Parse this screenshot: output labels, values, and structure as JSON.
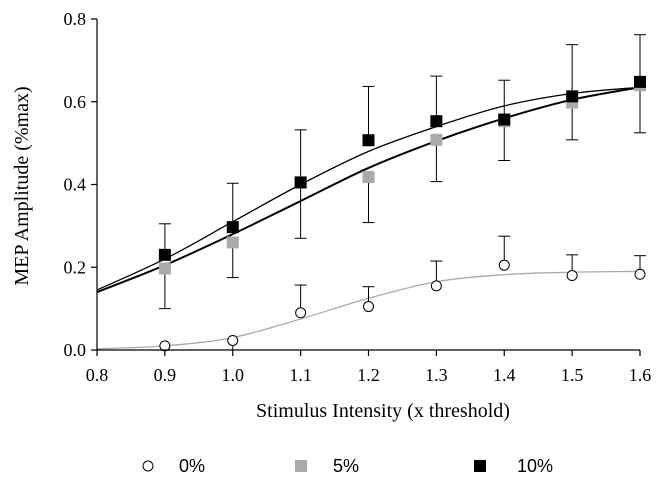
{
  "chart_data": {
    "type": "scatter",
    "title": "",
    "xlabel": "Stimulus Intensity (x threshold)",
    "ylabel": "MEP Amplitude (%max)",
    "xlim": [
      0.8,
      1.6
    ],
    "ylim": [
      0.0,
      0.8
    ],
    "x_ticks": [
      0.8,
      0.9,
      1.0,
      1.1,
      1.2,
      1.3,
      1.4,
      1.5,
      1.6
    ],
    "x_tick_labels": [
      "0.8",
      "0.9",
      "1.0",
      "1.1",
      "1.2",
      "1.3",
      "1.4",
      "1.5",
      "1.6"
    ],
    "y_ticks": [
      0.0,
      0.2,
      0.4,
      0.6,
      0.8
    ],
    "y_tick_labels": [
      "0.0",
      "0.2",
      "0.4",
      "0.6",
      "0.8"
    ],
    "grid": false,
    "legend_position": "bottom",
    "x": [
      0.9,
      1.0,
      1.1,
      1.2,
      1.3,
      1.4,
      1.5,
      1.6
    ],
    "series": [
      {
        "name": "0%",
        "marker": "open-circle",
        "color": "#000000",
        "fit_color": "#aaaaaa",
        "values": [
          0.01,
          0.023,
          0.09,
          0.105,
          0.155,
          0.205,
          0.18,
          0.183
        ],
        "error_upper": [
          0.0,
          0.0,
          0.157,
          0.153,
          0.215,
          0.275,
          0.23,
          0.228
        ],
        "error_lower": [
          null,
          null,
          null,
          null,
          null,
          null,
          null,
          null
        ],
        "fit": [
          0.003,
          0.01,
          0.03,
          0.075,
          0.125,
          0.165,
          0.182,
          0.188,
          0.19
        ]
      },
      {
        "name": "5%",
        "marker": "filled-square",
        "color": "#aaaaaa",
        "fit_color": "#000000",
        "values": [
          0.197,
          0.26,
          0.405,
          0.418,
          0.508,
          0.553,
          0.598,
          0.64
        ],
        "error_upper": [
          null,
          null,
          null,
          null,
          null,
          null,
          null,
          null
        ],
        "error_lower": [
          0.1,
          0.175,
          0.27,
          0.308,
          0.407,
          0.458,
          0.508,
          0.525
        ],
        "fit": [
          0.14,
          0.205,
          0.28,
          0.36,
          0.44,
          0.505,
          0.56,
          0.605,
          0.635
        ]
      },
      {
        "name": "10%",
        "marker": "filled-square",
        "color": "#000000",
        "fit_color": "#000000",
        "values": [
          0.23,
          0.297,
          0.405,
          0.507,
          0.553,
          0.557,
          0.613,
          0.648
        ],
        "error_upper": [
          0.305,
          0.403,
          0.532,
          0.637,
          0.662,
          0.652,
          0.738,
          0.762
        ],
        "error_lower": [
          null,
          null,
          null,
          null,
          null,
          null,
          null,
          null
        ],
        "fit": [
          0.145,
          0.22,
          0.31,
          0.4,
          0.48,
          0.54,
          0.59,
          0.62,
          0.635
        ]
      }
    ]
  }
}
